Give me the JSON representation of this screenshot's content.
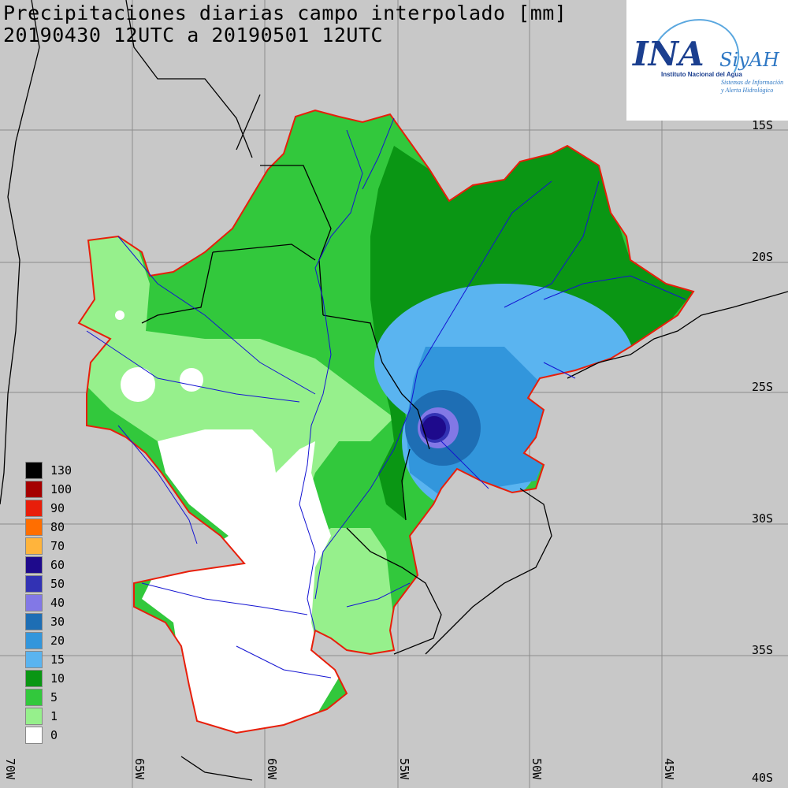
{
  "title": {
    "line1": "Precipitaciones diarias campo interpolado [mm]",
    "line2": "20190430 12UTC a 20190501 12UTC"
  },
  "logo": {
    "ina": "INA",
    "siyah": "SiyAH",
    "institute": "Instituto Nacional del Agua",
    "sub1": "Sistemas de Información",
    "sub2": "y Alerta Hidrológico"
  },
  "latitude_labels": [
    "15S",
    "20S",
    "25S",
    "30S",
    "35S",
    "40S"
  ],
  "longitude_labels": [
    "70W",
    "65W",
    "60W",
    "55W",
    "50W",
    "45W"
  ],
  "legend": [
    {
      "label": "130",
      "color": "#000000"
    },
    {
      "label": "100",
      "color": "#a50000"
    },
    {
      "label": "90",
      "color": "#e81e0a"
    },
    {
      "label": "80",
      "color": "#ff6e00"
    },
    {
      "label": "70",
      "color": "#ffb43c"
    },
    {
      "label": "60",
      "color": "#1e0a8c"
    },
    {
      "label": "50",
      "color": "#3232b4"
    },
    {
      "label": "40",
      "color": "#8278e6"
    },
    {
      "label": "30",
      "color": "#1e6eb4"
    },
    {
      "label": "20",
      "color": "#3296dc"
    },
    {
      "label": "15",
      "color": "#5ab4f0"
    },
    {
      "label": "10",
      "color": "#0a9614"
    },
    {
      "label": "5",
      "color": "#32c83c"
    },
    {
      "label": "1",
      "color": "#96f08c"
    },
    {
      "label": "0",
      "color": "#ffffff"
    }
  ],
  "colors": {
    "background": "#c8c8c8",
    "basin_border": "#e81e0a",
    "rivers": "#1414d2",
    "borders": "#000000",
    "grid": "#8c8c8c"
  }
}
